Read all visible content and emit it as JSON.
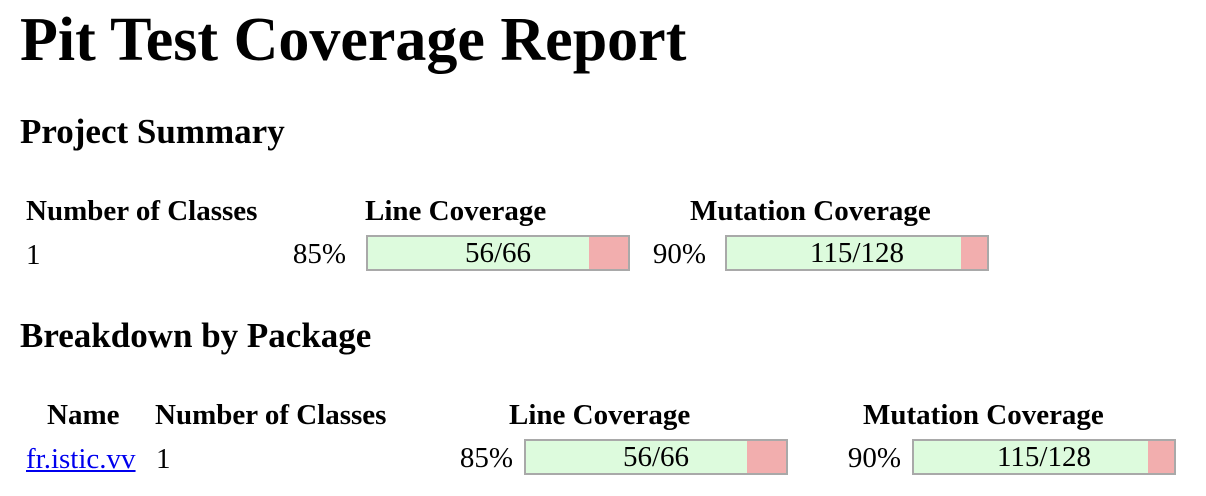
{
  "page": {
    "title": "Pit Test Coverage Report"
  },
  "project_summary": {
    "heading": "Project Summary",
    "headers": {
      "classes": "Number of Classes",
      "line": "Line Coverage",
      "mutation": "Mutation Coverage"
    },
    "row": {
      "classes": "1",
      "line_pct": "85%",
      "line_ratio": "56/66",
      "line_fraction": 0.85,
      "mutation_pct": "90%",
      "mutation_ratio": "115/128",
      "mutation_fraction": 0.9
    }
  },
  "breakdown": {
    "heading": "Breakdown by Package",
    "headers": {
      "name": "Name",
      "classes": "Number of Classes",
      "line": "Line Coverage",
      "mutation": "Mutation Coverage"
    },
    "rows": [
      {
        "name": "fr.istic.vv",
        "classes": "1",
        "line_pct": "85%",
        "line_ratio": "56/66",
        "line_fraction": 0.85,
        "mutation_pct": "90%",
        "mutation_ratio": "115/128",
        "mutation_fraction": 0.9
      }
    ]
  },
  "colors": {
    "covered": "#ddfbdd",
    "uncovered": "#f2aeae",
    "bar_border": "#a9a9a9",
    "link": "#0000ee"
  }
}
